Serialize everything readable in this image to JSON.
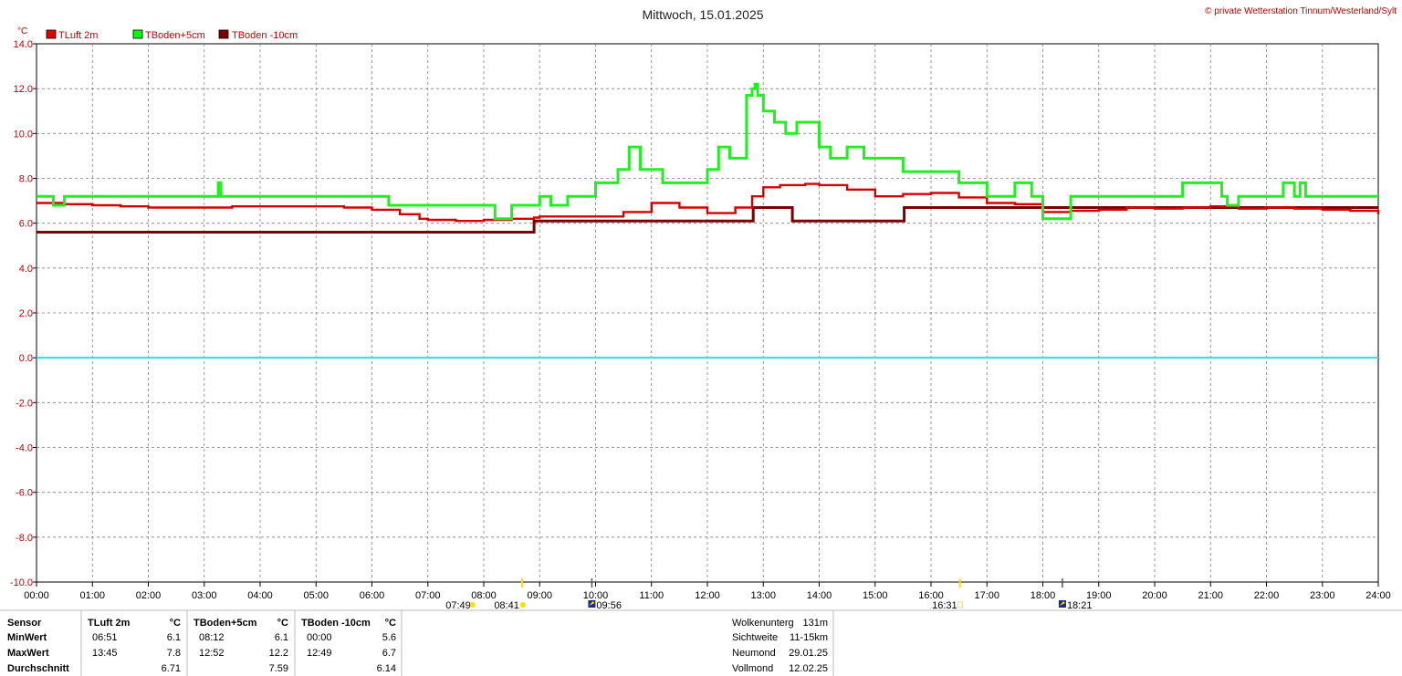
{
  "title": "Mittwoch, 15.01.2025",
  "copyright": "© private Wetterstation Tinnum/Westerland/Sylt",
  "unit": "°C",
  "legend": [
    {
      "name": "TLuft 2m",
      "color": "#e00000"
    },
    {
      "name": "TBoden+5cm",
      "color": "#00ff00"
    },
    {
      "name": "TBoden -10cm",
      "color": "#800000"
    }
  ],
  "colors": {
    "tluft": "#d40000",
    "tboden5": "#22ee22",
    "tboden10": "#7a0000",
    "zero_line": "#33dddd",
    "grid": "#808080",
    "sun": "#ffdd00"
  },
  "chart_data": {
    "type": "line",
    "xlabel": "",
    "ylabel": "°C",
    "xlim": [
      0,
      24
    ],
    "ylim": [
      -10,
      14
    ],
    "grid": true,
    "legend_position": "top-left",
    "x_tick_labels": [
      "00:00",
      "01:00",
      "02:00",
      "03:00",
      "04:00",
      "05:00",
      "06:00",
      "07:00",
      "08:00",
      "09:00",
      "10:00",
      "11:00",
      "12:00",
      "13:00",
      "14:00",
      "15:00",
      "16:00",
      "17:00",
      "18:00",
      "19:00",
      "20:00",
      "21:00",
      "22:00",
      "23:00",
      "24:00"
    ],
    "y_tick_labels": [
      "14.0",
      "12.0",
      "10.0",
      "8.0",
      "6.0",
      "4.0",
      "2.0",
      "0.0",
      "-2.0",
      "-4.0",
      "-6.0",
      "-8.0",
      "-10.0"
    ],
    "series": [
      {
        "name": "TLuft 2m",
        "x": [
          0,
          0.5,
          1.0,
          1.5,
          2.0,
          2.5,
          3.0,
          3.5,
          4.0,
          4.5,
          5.0,
          5.5,
          6.0,
          6.5,
          6.85,
          7.0,
          7.5,
          8.0,
          8.5,
          8.9,
          9.0,
          9.5,
          10.0,
          10.5,
          11.0,
          11.5,
          12.0,
          12.5,
          12.8,
          13.0,
          13.3,
          13.75,
          14.0,
          14.5,
          15.0,
          15.5,
          16.0,
          16.5,
          17.0,
          17.5,
          18.0,
          18.5,
          19.0,
          19.5,
          20.0,
          20.5,
          21.0,
          21.5,
          22.0,
          22.5,
          23.0,
          23.5,
          24.0
        ],
        "y": [
          6.9,
          6.85,
          6.8,
          6.75,
          6.7,
          6.7,
          6.7,
          6.75,
          6.75,
          6.75,
          6.75,
          6.7,
          6.6,
          6.4,
          6.2,
          6.15,
          6.1,
          6.15,
          6.2,
          6.25,
          6.3,
          6.3,
          6.3,
          6.5,
          6.9,
          6.7,
          6.45,
          6.7,
          7.2,
          7.6,
          7.7,
          7.75,
          7.7,
          7.5,
          7.2,
          7.3,
          7.35,
          7.15,
          6.9,
          6.85,
          6.5,
          6.55,
          6.6,
          6.7,
          6.65,
          6.7,
          6.75,
          6.65,
          6.7,
          6.65,
          6.6,
          6.55,
          6.4
        ]
      },
      {
        "name": "TBoden+5cm",
        "x": [
          0,
          0.3,
          0.4,
          0.5,
          3.2,
          3.25,
          3.3,
          6.2,
          6.3,
          7.0,
          8.1,
          8.2,
          8.4,
          8.5,
          9.0,
          9.2,
          9.5,
          10.0,
          10.4,
          10.6,
          10.8,
          11.2,
          12.0,
          12.2,
          12.4,
          12.7,
          12.8,
          12.85,
          12.9,
          13.0,
          13.2,
          13.4,
          13.6,
          14.0,
          14.2,
          14.5,
          14.8,
          15.5,
          16.0,
          16.5,
          17.0,
          17.5,
          17.8,
          18.0,
          18.2,
          18.5,
          19.0,
          20.0,
          20.5,
          21.0,
          21.2,
          21.3,
          21.5,
          22.0,
          22.3,
          22.5,
          22.6,
          22.7,
          23.0,
          24.0
        ],
        "y": [
          7.2,
          6.8,
          6.8,
          7.2,
          7.2,
          7.8,
          7.2,
          7.2,
          6.8,
          6.8,
          6.8,
          6.2,
          6.2,
          6.8,
          7.2,
          6.8,
          7.2,
          7.8,
          8.4,
          9.4,
          8.4,
          7.8,
          8.4,
          9.4,
          8.9,
          11.7,
          12.0,
          12.2,
          11.7,
          11.0,
          10.5,
          10.0,
          10.5,
          9.4,
          8.9,
          9.4,
          8.9,
          8.3,
          8.3,
          7.8,
          7.2,
          7.8,
          7.2,
          6.2,
          6.2,
          7.2,
          7.2,
          7.2,
          7.8,
          7.8,
          7.2,
          6.8,
          7.2,
          7.2,
          7.8,
          7.2,
          7.8,
          7.2,
          7.2,
          7.2
        ]
      },
      {
        "name": "TBoden -10cm",
        "x": [
          0,
          8.85,
          8.9,
          12.8,
          12.82,
          13.5,
          13.52,
          15.5,
          15.52,
          24.0
        ],
        "y": [
          5.6,
          5.6,
          6.1,
          6.1,
          6.7,
          6.7,
          6.1,
          6.1,
          6.7,
          6.7
        ]
      }
    ]
  },
  "sun_events": [
    {
      "hour": 7.8167,
      "label": "07:49",
      "marker": "sunrise"
    },
    {
      "hour": 8.6833,
      "label": "08:41",
      "marker": "sunrise-tick"
    },
    {
      "hour": 9.9333,
      "label": "09:56",
      "marker": "moonset"
    },
    {
      "hour": 16.5167,
      "label": "16:31",
      "marker": "sunset-tick"
    },
    {
      "hour": 18.35,
      "label": "18:21",
      "marker": "moonrise"
    }
  ],
  "stats": {
    "header_sensor": "Sensor",
    "rows": [
      "MinWert",
      "MaxWert",
      "Durchschnitt"
    ],
    "sensors": [
      {
        "name": "TLuft 2m",
        "unit": "°C",
        "min_time": "06:51",
        "min": "6.1",
        "max_time": "13:45",
        "max": "7.8",
        "avg": "6.71"
      },
      {
        "name": "TBoden+5cm",
        "unit": "°C",
        "min_time": "08:12",
        "min": "6.1",
        "max_time": "12:52",
        "max": "12.2",
        "avg": "7.59"
      },
      {
        "name": "TBoden -10cm",
        "unit": "°C",
        "min_time": "00:00",
        "min": "5.6",
        "max_time": "12:49",
        "max": "6.7",
        "avg": "6.14"
      }
    ]
  },
  "info": [
    {
      "label": "Wolkenunterg",
      "value": "131m"
    },
    {
      "label": "Sichtweite",
      "value": "11-15km"
    },
    {
      "label": "Neumond",
      "value": "29.01.25"
    },
    {
      "label": "Vollmond",
      "value": "12.02.25"
    }
  ]
}
